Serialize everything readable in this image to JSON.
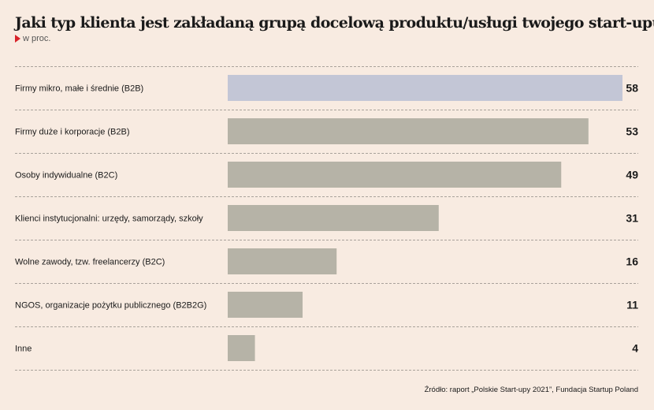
{
  "chart_data": {
    "type": "bar",
    "orientation": "horizontal",
    "title": "Jaki typ klienta jest zakładaną grupą docelową produktu/usługi twojego start-upu?",
    "subtitle": "w proc.",
    "categories": [
      "Firmy mikro, małe i średnie (B2B)",
      "Firmy duże i korporacje (B2B)",
      "Osoby indywidualne (B2C)",
      "Klienci instytucjonalni: urzędy, samorządy, szkoły",
      "Wolne zawody, tzw. freelancerzy (B2C)",
      "NGOS, organizacje pożytku publicznego (B2B2G)",
      "Inne"
    ],
    "values": [
      58,
      53,
      49,
      31,
      16,
      11,
      4
    ],
    "xlim": [
      0,
      58
    ],
    "highlight_index": 0,
    "colors": {
      "highlight": "#c3c6d6",
      "bar": "#b6b3a7",
      "divider": "#a9a29b",
      "accent": "#d8232a"
    }
  },
  "source": "Źródło: raport „Polskie Start-upy 2021”, Fundacja Startup Poland"
}
